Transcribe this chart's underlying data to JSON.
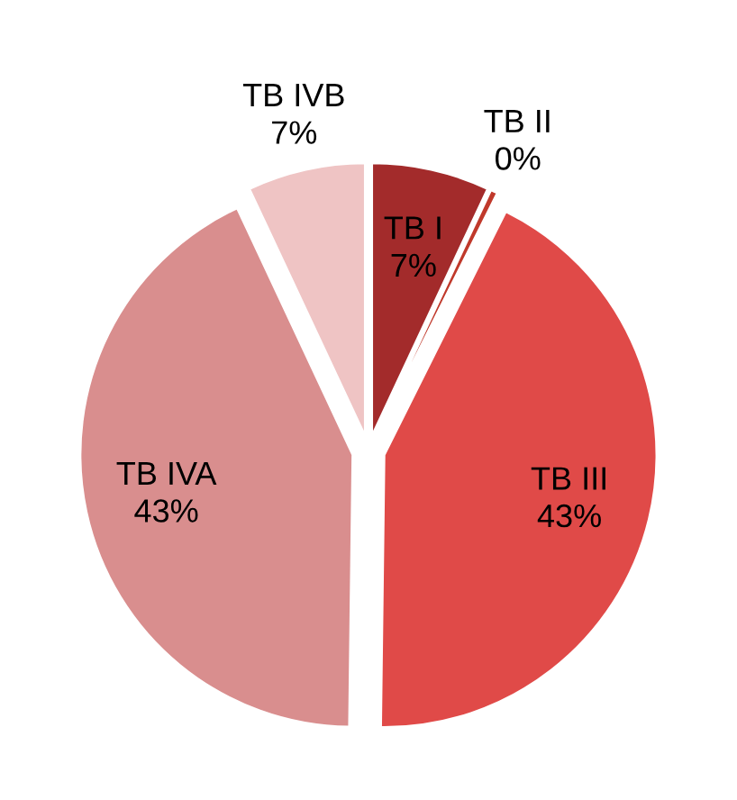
{
  "chart_data": {
    "type": "pie",
    "categories": [
      "TB I",
      "TB II",
      "TB III",
      "TB IVA",
      "TB IVB"
    ],
    "values": [
      7,
      0.4,
      43,
      43,
      7
    ],
    "value_labels": [
      "7%",
      "0%",
      "43%",
      "43%",
      "7%"
    ],
    "colors": [
      "#a32b2b",
      "#c0392b",
      "#e04a48",
      "#d98e8e",
      "#efc4c4"
    ],
    "legend": false
  }
}
